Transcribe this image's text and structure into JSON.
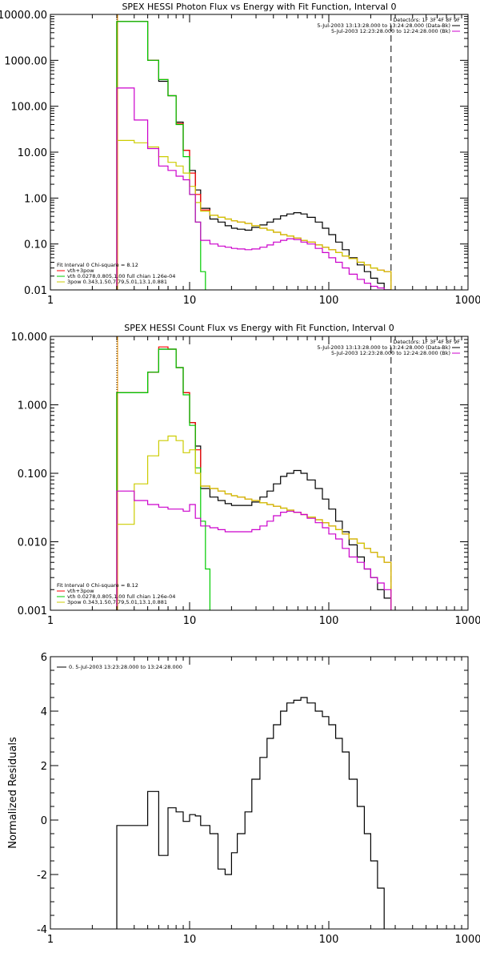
{
  "chart_data": [
    {
      "type": "line",
      "title": "SPEX HESSI Photon Flux vs Energy with Fit Function, Interval 0",
      "xscale": "log",
      "yscale": "log",
      "xlim": [
        1,
        1000
      ],
      "ylim": [
        0.01,
        10000
      ],
      "x_ticks": [
        1,
        10,
        100,
        1000
      ],
      "x_tick_labels": [
        "1",
        "10",
        "100",
        "1000"
      ],
      "y_ticks": [
        0.01,
        0.1,
        1,
        10,
        100,
        1000,
        10000
      ],
      "y_tick_labels": [
        "0.01",
        "0.10",
        "1.00",
        "10.00",
        "100.00",
        "1000.00",
        "10000.00"
      ],
      "verticals": [
        {
          "x": 3,
          "style": "dotted",
          "color": "#000000"
        },
        {
          "x": 3,
          "style": "solid",
          "color": "#ff9900"
        },
        {
          "x": 280,
          "style": "dashed",
          "color": "#000000"
        }
      ],
      "legend_top_right": {
        "header": "Detectors: 1F 3F 4F 8F 9F",
        "items": [
          {
            "text": "5-Jul-2003 13:13:28.000 to 13:24:28.000 (Data-Bk)",
            "color": "#000000"
          },
          {
            "text": "5-Jul-2003 12:23:28.000 to 12:24:28.000 (Bk)",
            "color": "#cc00cc"
          }
        ]
      },
      "legend_bottom_left": {
        "header": "Fit Interval 0   Chi-square = 8.12",
        "items": [
          {
            "text": "vth+3pow",
            "color": "#ff0000"
          },
          {
            "text": "vth 0.0278,0.805,1.00  full chian 1.26e-04",
            "color": "#00cc00"
          },
          {
            "text": "3pow 0.343,1.50,7.79,5.01,13.1,0.881",
            "color": "#cccc00"
          }
        ]
      },
      "series": [
        {
          "color": "#000000",
          "style": "step",
          "x": [
            3,
            4,
            5,
            6,
            7,
            8,
            9,
            10,
            11,
            12,
            14,
            16,
            18,
            20,
            22,
            25,
            28,
            32,
            36,
            40,
            45,
            50,
            56,
            63,
            70,
            80,
            90,
            100,
            112,
            125,
            140,
            160,
            180,
            200,
            224,
            250,
            280
          ],
          "y": [
            7000,
            7000,
            1000,
            350,
            170,
            45,
            11,
            4,
            1.5,
            0.6,
            0.35,
            0.3,
            0.25,
            0.22,
            0.21,
            0.2,
            0.23,
            0.26,
            0.3,
            0.35,
            0.41,
            0.45,
            0.48,
            0.45,
            0.38,
            0.3,
            0.22,
            0.16,
            0.11,
            0.075,
            0.05,
            0.035,
            0.025,
            0.018,
            0.014,
            0.01,
            0.01
          ]
        },
        {
          "color": "#ff0000",
          "style": "step",
          "x": [
            3,
            4,
            5,
            6,
            7,
            8,
            9,
            10,
            11,
            12,
            14,
            16,
            18,
            20,
            22,
            25,
            28,
            32,
            36,
            40,
            45,
            50,
            56,
            63,
            70,
            80,
            90,
            100,
            112,
            125,
            140,
            160,
            180,
            200,
            224,
            250,
            280
          ],
          "y": [
            7000,
            7000,
            1000,
            380,
            170,
            42,
            11,
            3.5,
            1.2,
            0.55,
            0.42,
            0.38,
            0.35,
            0.32,
            0.3,
            0.28,
            0.25,
            0.22,
            0.2,
            0.18,
            0.16,
            0.15,
            0.135,
            0.12,
            0.11,
            0.095,
            0.085,
            0.075,
            0.065,
            0.055,
            0.048,
            0.04,
            0.035,
            0.03,
            0.027,
            0.025,
            0.025
          ]
        },
        {
          "color": "#00cc00",
          "style": "step",
          "x": [
            3,
            4,
            5,
            6,
            7,
            8,
            9,
            10,
            11,
            12,
            13
          ],
          "y": [
            7000,
            7000,
            1000,
            380,
            170,
            40,
            8,
            1.2,
            0.3,
            0.025,
            0.01
          ]
        },
        {
          "color": "#cccc00",
          "style": "step",
          "x": [
            3,
            4,
            5,
            6,
            7,
            8,
            9,
            10,
            11,
            12,
            14,
            16,
            18,
            20,
            22,
            25,
            28,
            32,
            36,
            40,
            45,
            50,
            56,
            63,
            70,
            80,
            90,
            100,
            112,
            125,
            140,
            160,
            180,
            200,
            224,
            250,
            280
          ],
          "y": [
            18,
            16,
            13,
            8,
            6,
            5,
            3.5,
            1.8,
            0.8,
            0.52,
            0.42,
            0.38,
            0.35,
            0.32,
            0.3,
            0.28,
            0.25,
            0.22,
            0.2,
            0.18,
            0.16,
            0.15,
            0.135,
            0.12,
            0.11,
            0.095,
            0.085,
            0.075,
            0.065,
            0.055,
            0.048,
            0.04,
            0.035,
            0.03,
            0.027,
            0.025,
            0.025
          ]
        },
        {
          "color": "#cc00cc",
          "style": "step",
          "x": [
            3,
            4,
            5,
            6,
            7,
            8,
            9,
            10,
            11,
            12,
            14,
            16,
            18,
            20,
            22,
            25,
            28,
            32,
            36,
            40,
            45,
            50,
            56,
            63,
            70,
            80,
            90,
            100,
            112,
            125,
            140,
            160,
            180,
            200,
            224,
            250,
            280
          ],
          "y": [
            250,
            50,
            12,
            5,
            4,
            3,
            2.5,
            1.2,
            0.3,
            0.12,
            0.1,
            0.09,
            0.085,
            0.08,
            0.078,
            0.075,
            0.078,
            0.085,
            0.095,
            0.11,
            0.12,
            0.13,
            0.125,
            0.11,
            0.1,
            0.08,
            0.065,
            0.05,
            0.04,
            0.03,
            0.022,
            0.017,
            0.014,
            0.012,
            0.011,
            0.01,
            0.01
          ]
        }
      ]
    },
    {
      "type": "line",
      "title": "SPEX HESSI Count Flux vs Energy with Fit Function, Interval 0",
      "xscale": "log",
      "yscale": "log",
      "xlim": [
        1,
        1000
      ],
      "ylim": [
        0.001,
        10
      ],
      "x_ticks": [
        1,
        10,
        100,
        1000
      ],
      "x_tick_labels": [
        "1",
        "10",
        "100",
        "1000"
      ],
      "y_ticks": [
        0.001,
        0.01,
        0.1,
        1,
        10
      ],
      "y_tick_labels": [
        "0.001",
        "0.010",
        "0.100",
        "1.000",
        "10.000"
      ],
      "verticals": [
        {
          "x": 3,
          "style": "dotted",
          "color": "#000000"
        },
        {
          "x": 3,
          "style": "solid",
          "color": "#ff9900"
        },
        {
          "x": 280,
          "style": "dashed",
          "color": "#000000"
        }
      ],
      "legend_top_right": {
        "header": "Detectors: 1F 3F 4F 8F 9F",
        "items": [
          {
            "text": "5-Jul-2003 13:13:28.000 to 13:24:28.000 (Data-Bk)",
            "color": "#000000"
          },
          {
            "text": "5-Jul-2003 12:23:28.000 to 12:24:28.000 (Bk)",
            "color": "#cc00cc"
          }
        ]
      },
      "legend_bottom_left": {
        "header": "Fit Interval 0   Chi-square = 8.12",
        "items": [
          {
            "text": "vth+3pow",
            "color": "#ff0000"
          },
          {
            "text": "vth 0.0278,0.805,1.00  full chian 1.26e-04",
            "color": "#00cc00"
          },
          {
            "text": "3pow 0.343,1.50,7.79,5.01,13.1,0.881",
            "color": "#cccc00"
          }
        ]
      },
      "series": [
        {
          "color": "#000000",
          "style": "step",
          "x": [
            3,
            4,
            5,
            6,
            7,
            8,
            9,
            10,
            11,
            12,
            14,
            16,
            18,
            20,
            22,
            25,
            28,
            32,
            36,
            40,
            45,
            50,
            56,
            63,
            70,
            80,
            90,
            100,
            112,
            125,
            140,
            160,
            180,
            200,
            224,
            250,
            280
          ],
          "y": [
            1.5,
            1.5,
            3,
            6.5,
            6.5,
            3.5,
            1.5,
            0.55,
            0.25,
            0.06,
            0.045,
            0.04,
            0.036,
            0.034,
            0.034,
            0.034,
            0.038,
            0.045,
            0.055,
            0.07,
            0.09,
            0.1,
            0.11,
            0.1,
            0.08,
            0.06,
            0.042,
            0.03,
            0.02,
            0.014,
            0.009,
            0.006,
            0.004,
            0.003,
            0.002,
            0.0015,
            0.001
          ]
        },
        {
          "color": "#ff0000",
          "style": "step",
          "x": [
            3,
            4,
            5,
            6,
            7,
            8,
            9,
            10,
            11,
            12,
            14,
            16,
            18,
            20,
            22,
            25,
            28,
            32,
            36,
            40,
            45,
            50,
            56,
            63,
            70,
            80,
            90,
            100,
            112,
            125,
            140,
            160,
            180,
            200,
            224,
            250,
            280
          ],
          "y": [
            1.5,
            1.5,
            3,
            7,
            6.5,
            3.5,
            1.5,
            0.55,
            0.22,
            0.065,
            0.06,
            0.055,
            0.05,
            0.047,
            0.045,
            0.042,
            0.04,
            0.037,
            0.035,
            0.033,
            0.031,
            0.029,
            0.027,
            0.025,
            0.023,
            0.021,
            0.019,
            0.017,
            0.015,
            0.013,
            0.011,
            0.0095,
            0.008,
            0.007,
            0.006,
            0.005,
            0.001
          ]
        },
        {
          "color": "#00cc00",
          "style": "step",
          "x": [
            3,
            4,
            5,
            6,
            7,
            8,
            9,
            10,
            11,
            12,
            13,
            14
          ],
          "y": [
            1.5,
            1.5,
            3,
            6.5,
            6.5,
            3.5,
            1.4,
            0.5,
            0.12,
            0.02,
            0.004,
            0.001
          ]
        },
        {
          "color": "#cccc00",
          "style": "step",
          "x": [
            3,
            4,
            5,
            6,
            7,
            8,
            9,
            10,
            11,
            12,
            14,
            16,
            18,
            20,
            22,
            25,
            28,
            32,
            36,
            40,
            45,
            50,
            56,
            63,
            70,
            80,
            90,
            100,
            112,
            125,
            140,
            160,
            180,
            200,
            224,
            250,
            280
          ],
          "y": [
            0.018,
            0.07,
            0.18,
            0.3,
            0.35,
            0.3,
            0.2,
            0.22,
            0.1,
            0.065,
            0.06,
            0.055,
            0.05,
            0.047,
            0.045,
            0.042,
            0.04,
            0.037,
            0.035,
            0.033,
            0.031,
            0.029,
            0.027,
            0.025,
            0.023,
            0.021,
            0.019,
            0.017,
            0.015,
            0.013,
            0.011,
            0.0095,
            0.008,
            0.007,
            0.006,
            0.005,
            0.001
          ]
        },
        {
          "color": "#cc00cc",
          "style": "step",
          "x": [
            3,
            4,
            5,
            6,
            7,
            8,
            9,
            10,
            11,
            12,
            14,
            16,
            18,
            20,
            22,
            25,
            28,
            32,
            36,
            40,
            45,
            50,
            56,
            63,
            70,
            80,
            90,
            100,
            112,
            125,
            140,
            160,
            180,
            200,
            224,
            250,
            280
          ],
          "y": [
            0.055,
            0.04,
            0.035,
            0.032,
            0.03,
            0.03,
            0.028,
            0.035,
            0.022,
            0.017,
            0.016,
            0.015,
            0.014,
            0.014,
            0.014,
            0.014,
            0.015,
            0.017,
            0.02,
            0.024,
            0.027,
            0.028,
            0.027,
            0.025,
            0.022,
            0.019,
            0.016,
            0.013,
            0.011,
            0.008,
            0.006,
            0.005,
            0.004,
            0.003,
            0.0025,
            0.002,
            0.001
          ]
        }
      ]
    },
    {
      "type": "line",
      "title": "",
      "ylabel": "Normalized Residuals",
      "xscale": "log",
      "yscale": "linear",
      "xlim": [
        1,
        1000
      ],
      "ylim": [
        -4,
        6
      ],
      "x_ticks": [
        1,
        10,
        100,
        1000
      ],
      "x_tick_labels": [
        "1",
        "10",
        "100",
        "1000"
      ],
      "y_ticks": [
        -4,
        -2,
        0,
        2,
        4,
        6
      ],
      "y_tick_labels": [
        "-4",
        "-2",
        "0",
        "2",
        "4",
        "6"
      ],
      "legend_top_left": {
        "items": [
          {
            "text": "0.  5-Jul-2003 13:23:28.000 to 13:24:28.000",
            "color": "#000000"
          }
        ]
      },
      "series": [
        {
          "color": "#000000",
          "style": "step",
          "x": [
            3,
            4,
            5,
            6,
            7,
            8,
            9,
            10,
            11,
            12,
            14,
            16,
            18,
            20,
            22,
            25,
            28,
            32,
            36,
            40,
            45,
            50,
            56,
            63,
            70,
            80,
            90,
            100,
            112,
            125,
            140,
            160,
            180,
            200,
            224,
            250
          ],
          "y": [
            -0.2,
            -0.2,
            1.05,
            -1.3,
            0.45,
            0.3,
            -0.05,
            0.2,
            0.15,
            -0.2,
            -0.5,
            -1.8,
            -2.0,
            -1.2,
            -0.5,
            0.3,
            1.5,
            2.3,
            3.0,
            3.5,
            4.0,
            4.3,
            4.4,
            4.5,
            4.3,
            4.0,
            3.8,
            3.5,
            3.0,
            2.5,
            1.5,
            0.5,
            -0.5,
            -1.5,
            -2.5,
            -3.8
          ]
        }
      ]
    }
  ]
}
